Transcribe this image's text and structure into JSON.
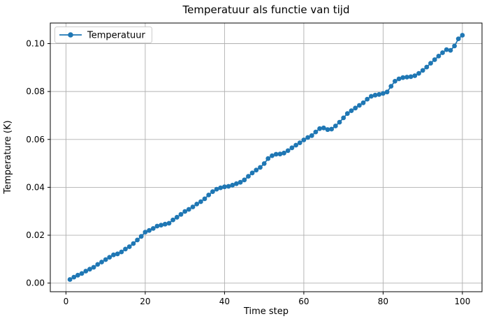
{
  "chart_data": {
    "type": "line",
    "title": "Temperatuur als functie van tijd",
    "xlabel": "Time step",
    "ylabel": "Temperature (K)",
    "grid": true,
    "legend_position": "upper left",
    "line_color": "#1f77b4",
    "marker": "o",
    "grid_color": "#b0b0b0",
    "legend_border_color": "#cccccc",
    "x_ticks": [
      0,
      20,
      40,
      60,
      80,
      100
    ],
    "x_tick_labels": [
      "0",
      "20",
      "40",
      "60",
      "80",
      "100"
    ],
    "y_ticks": [
      0.0,
      0.02,
      0.04,
      0.06,
      0.08,
      0.1
    ],
    "y_tick_labels": [
      "0.00",
      "0.02",
      "0.04",
      "0.06",
      "0.08",
      "0.10"
    ],
    "xlim": [
      -3.95,
      104.95
    ],
    "ylim": [
      -0.0036,
      0.1086
    ],
    "series": [
      {
        "name": "Temperatuur",
        "x": [
          1,
          2,
          3,
          4,
          5,
          6,
          7,
          8,
          9,
          10,
          11,
          12,
          13,
          14,
          15,
          16,
          17,
          18,
          19,
          20,
          21,
          22,
          23,
          24,
          25,
          26,
          27,
          28,
          29,
          30,
          31,
          32,
          33,
          34,
          35,
          36,
          37,
          38,
          39,
          40,
          41,
          42,
          43,
          44,
          45,
          46,
          47,
          48,
          49,
          50,
          51,
          52,
          53,
          54,
          55,
          56,
          57,
          58,
          59,
          60,
          61,
          62,
          63,
          64,
          65,
          66,
          67,
          68,
          69,
          70,
          71,
          72,
          73,
          74,
          75,
          76,
          77,
          78,
          79,
          80,
          81,
          82,
          83,
          84,
          85,
          86,
          87,
          88,
          89,
          90,
          91,
          92,
          93,
          94,
          95,
          96,
          97,
          98,
          99,
          100
        ],
        "y": [
          0.0015,
          0.0025,
          0.0033,
          0.004,
          0.005,
          0.0058,
          0.0066,
          0.0078,
          0.0088,
          0.0098,
          0.0108,
          0.0118,
          0.0122,
          0.013,
          0.0142,
          0.0152,
          0.0165,
          0.018,
          0.0195,
          0.0213,
          0.022,
          0.0228,
          0.0238,
          0.0242,
          0.0246,
          0.025,
          0.0264,
          0.0275,
          0.0287,
          0.0299,
          0.0308,
          0.0318,
          0.033,
          0.034,
          0.0352,
          0.0368,
          0.0382,
          0.0392,
          0.0398,
          0.0402,
          0.0404,
          0.0409,
          0.0415,
          0.0421,
          0.0431,
          0.0446,
          0.046,
          0.0472,
          0.0483,
          0.0499,
          0.052,
          0.0532,
          0.0538,
          0.0539,
          0.0543,
          0.0553,
          0.0565,
          0.0576,
          0.0586,
          0.0598,
          0.0608,
          0.0616,
          0.0631,
          0.0645,
          0.0648,
          0.0641,
          0.0643,
          0.0656,
          0.0672,
          0.069,
          0.0708,
          0.072,
          0.0731,
          0.0742,
          0.0753,
          0.0768,
          0.078,
          0.0785,
          0.0788,
          0.0792,
          0.0798,
          0.0822,
          0.0843,
          0.0853,
          0.0858,
          0.086,
          0.0862,
          0.0866,
          0.0876,
          0.0888,
          0.0902,
          0.0918,
          0.0933,
          0.0948,
          0.0962,
          0.0975,
          0.0972,
          0.099,
          0.102,
          0.1035
        ]
      }
    ]
  }
}
